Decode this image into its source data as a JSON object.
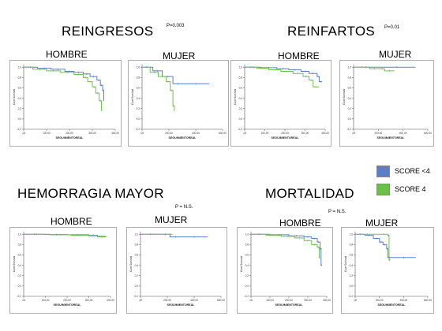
{
  "colors": {
    "score_lt4": "#5b7fc7",
    "score4": "#6cc04a",
    "panel_border": "#999999",
    "axis": "#555555"
  },
  "legend": {
    "items": [
      {
        "label": "SCORE <4",
        "color": "#5b7fc7"
      },
      {
        "label": "SCORE 4",
        "color": "#6cc04a"
      }
    ]
  },
  "sections": [
    {
      "title": "REINGRESOS",
      "p": "P=0.003",
      "male_label": "HOMBRE",
      "female_label": "MUJER"
    },
    {
      "title": "REINFARTOS",
      "p": "P=0.01",
      "male_label": "HOMBRE",
      "female_label": "MUJER"
    },
    {
      "title": "HEMORRAGIA MAYOR",
      "p": "P = N.S.",
      "male_label": "HOMBRE",
      "female_label": "MUJER"
    },
    {
      "title": "MORTALIDAD",
      "p": "P = N.S.",
      "male_label": "HOMBRE",
      "female_label": "MUJER"
    }
  ],
  "chart_data": [
    {
      "type": "line",
      "section": "REINGRESOS",
      "panel": "HOMBRE",
      "xlabel": "SEGUIMIENTOREAL",
      "ylabel": "Cum Survival",
      "xlim": [
        0,
        400
      ],
      "ylim": [
        -0.2,
        1.05
      ],
      "x_ticks": [
        ",00",
        "100,00",
        "200,00",
        "300,00",
        "400,00"
      ],
      "y_ticks": [
        "1,0",
        "0,8",
        "0,6",
        "0,4",
        "0,2",
        "0,0",
        "-0,2"
      ],
      "series": [
        {
          "name": "SCORE <4",
          "points": [
            [
              0,
              1
            ],
            [
              60,
              0.98
            ],
            [
              120,
              0.96
            ],
            [
              180,
              0.92
            ],
            [
              220,
              0.9
            ],
            [
              260,
              0.87
            ],
            [
              290,
              0.82
            ],
            [
              320,
              0.75
            ],
            [
              335,
              0.65
            ],
            [
              345,
              0.55
            ],
            [
              350,
              0.35
            ]
          ]
        },
        {
          "name": "SCORE 4",
          "points": [
            [
              0,
              1
            ],
            [
              40,
              0.96
            ],
            [
              100,
              0.93
            ],
            [
              160,
              0.9
            ],
            [
              220,
              0.86
            ],
            [
              260,
              0.8
            ],
            [
              280,
              0.72
            ],
            [
              300,
              0.62
            ],
            [
              315,
              0.5
            ],
            [
              330,
              0.35
            ],
            [
              340,
              0.15
            ]
          ]
        }
      ]
    },
    {
      "type": "line",
      "section": "REINGRESOS",
      "panel": "MUJER",
      "xlabel": "SEGUIMIENTOREAL",
      "ylabel": "Cum Survival",
      "xlim": [
        0,
        600
      ],
      "ylim": [
        -0.2,
        1.05
      ],
      "x_ticks": [
        ",00",
        "200,00",
        "400,00",
        "600,00"
      ],
      "y_ticks": [
        "1,0",
        "0,8",
        "0,6",
        "0,4",
        "0,2",
        "0,0",
        "-0,2"
      ],
      "series": [
        {
          "name": "SCORE <4",
          "points": [
            [
              0,
              1
            ],
            [
              80,
              0.93
            ],
            [
              150,
              0.82
            ],
            [
              230,
              0.68
            ],
            [
              300,
              0.68
            ],
            [
              500,
              0.68
            ]
          ]
        },
        {
          "name": "SCORE 4",
          "points": [
            [
              0,
              1
            ],
            [
              60,
              0.9
            ],
            [
              120,
              0.82
            ],
            [
              180,
              0.72
            ],
            [
              210,
              0.55
            ],
            [
              230,
              0.25
            ],
            [
              240,
              0.15
            ]
          ]
        }
      ]
    },
    {
      "type": "line",
      "section": "REINFARTOS",
      "panel": "HOMBRE",
      "xlabel": "SEGUIMIENTOREAL",
      "ylabel": "Cum Survival",
      "xlim": [
        0,
        400
      ],
      "ylim": [
        -0.2,
        1.05
      ],
      "x_ticks": [
        ",00",
        "100,00",
        "200,00",
        "300,00",
        "400,00"
      ],
      "y_ticks": [
        "1,0",
        "0,8",
        "0,6",
        "0,4",
        "0,2",
        "0,0",
        "-0,2"
      ],
      "series": [
        {
          "name": "SCORE <4",
          "points": [
            [
              0,
              1
            ],
            [
              80,
              0.99
            ],
            [
              160,
              0.97
            ],
            [
              220,
              0.95
            ],
            [
              280,
              0.92
            ],
            [
              320,
              0.88
            ],
            [
              360,
              0.82
            ],
            [
              370,
              0.72
            ],
            [
              385,
              0.72
            ]
          ]
        },
        {
          "name": "SCORE 4",
          "points": [
            [
              0,
              1
            ],
            [
              60,
              0.98
            ],
            [
              120,
              0.95
            ],
            [
              180,
              0.92
            ],
            [
              240,
              0.88
            ],
            [
              290,
              0.82
            ],
            [
              320,
              0.75
            ],
            [
              340,
              0.62
            ],
            [
              370,
              0.62
            ]
          ]
        }
      ]
    },
    {
      "type": "line",
      "section": "REINFARTOS",
      "panel": "MUJER",
      "xlabel": "SEGUIMIENTOREAL",
      "ylabel": "Cum Survival",
      "xlim": [
        0,
        600
      ],
      "ylim": [
        -0.2,
        1.05
      ],
      "x_ticks": [
        ",00",
        "200,00",
        "400,00",
        "600,00"
      ],
      "y_ticks": [
        "1,0",
        "0,8",
        "0,6",
        "0,4",
        "0,2",
        "0,0",
        "-0,2"
      ],
      "series": [
        {
          "name": "SCORE <4",
          "points": [
            [
              0,
              1
            ],
            [
              200,
              1
            ],
            [
              500,
              1
            ]
          ]
        },
        {
          "name": "SCORE 4",
          "points": [
            [
              0,
              1
            ],
            [
              130,
              0.97
            ],
            [
              210,
              0.97
            ],
            [
              250,
              0.93
            ],
            [
              330,
              0.93
            ]
          ]
        }
      ]
    },
    {
      "type": "line",
      "section": "HEMORRAGIA MAYOR",
      "panel": "HOMBRE",
      "xlabel": "SEGUIMIENTOREAL",
      "ylabel": "Cum Survival",
      "xlim": [
        0,
        400
      ],
      "ylim": [
        -0.2,
        1.05
      ],
      "x_ticks": [
        ",00",
        "100,00",
        "200,00",
        "300,00",
        "400,00"
      ],
      "y_ticks": [
        "1,0",
        "0,8",
        "0,6",
        "0,4",
        "0,2",
        "0,0",
        "-0,2"
      ],
      "series": [
        {
          "name": "SCORE <4",
          "points": [
            [
              0,
              1
            ],
            [
              100,
              0.995
            ],
            [
              200,
              0.99
            ],
            [
              300,
              0.98
            ],
            [
              340,
              0.96
            ],
            [
              380,
              0.96
            ]
          ]
        },
        {
          "name": "SCORE 4",
          "points": [
            [
              0,
              1
            ],
            [
              120,
              0.99
            ],
            [
              220,
              0.98
            ],
            [
              300,
              0.97
            ],
            [
              340,
              0.95
            ],
            [
              380,
              0.95
            ]
          ]
        }
      ]
    },
    {
      "type": "line",
      "section": "HEMORRAGIA MAYOR",
      "panel": "MUJER",
      "xlabel": "SEGUIMIENTOREAL",
      "ylabel": "Cum Survival",
      "xlim": [
        0,
        600
      ],
      "ylim": [
        -0.2,
        1.05
      ],
      "x_ticks": [
        ",00",
        "200,00",
        "400,00",
        "600,00"
      ],
      "y_ticks": [
        "1,0",
        "0,8",
        "0,6",
        "0,4",
        "0,2",
        "0,0",
        "-0,2"
      ],
      "series": [
        {
          "name": "SCORE <4",
          "points": [
            [
              0,
              1
            ],
            [
              150,
              1
            ],
            [
              220,
              0.95
            ],
            [
              300,
              0.95
            ],
            [
              500,
              0.95
            ]
          ]
        },
        {
          "name": "SCORE 4",
          "points": [
            [
              0,
              1
            ],
            [
              200,
              1
            ],
            [
              240,
              1
            ]
          ]
        }
      ]
    },
    {
      "type": "line",
      "section": "MORTALIDAD",
      "panel": "HOMBRE",
      "xlabel": "SEGUIMIENTOREAL",
      "ylabel": "Cum Survival",
      "xlim": [
        0,
        400
      ],
      "ylim": [
        -0.2,
        1.05
      ],
      "x_ticks": [
        ",00",
        "100,00",
        "200,00",
        "300,00",
        "400,00"
      ],
      "y_ticks": [
        "1,0",
        "0,8",
        "0,6",
        "0,4",
        "0,2",
        "0,0",
        "-0,2"
      ],
      "series": [
        {
          "name": "SCORE <4",
          "points": [
            [
              0,
              1
            ],
            [
              100,
              0.99
            ],
            [
              200,
              0.97
            ],
            [
              280,
              0.95
            ],
            [
              320,
              0.92
            ],
            [
              350,
              0.85
            ],
            [
              365,
              0.72
            ],
            [
              370,
              0.4
            ],
            [
              375,
              0.4
            ]
          ]
        },
        {
          "name": "SCORE 4",
          "points": [
            [
              0,
              1
            ],
            [
              80,
              0.98
            ],
            [
              160,
              0.96
            ],
            [
              230,
              0.93
            ],
            [
              280,
              0.88
            ],
            [
              320,
              0.8
            ],
            [
              350,
              0.75
            ],
            [
              360,
              0.55
            ],
            [
              365,
              0.55
            ]
          ]
        }
      ]
    },
    {
      "type": "line",
      "section": "MORTALIDAD",
      "panel": "MUJER",
      "xlabel": "SEGUIMIENTOREAL",
      "ylabel": "Cum Survival",
      "xlim": [
        0,
        600
      ],
      "ylim": [
        -0.2,
        1.05
      ],
      "x_ticks": [
        ",00",
        "200,00",
        "400,00",
        "600,00"
      ],
      "y_ticks": [
        "1,0",
        "0,8",
        "0,6",
        "0,4",
        "0,2",
        "0,0",
        "-0,2"
      ],
      "series": [
        {
          "name": "SCORE <4",
          "points": [
            [
              0,
              1
            ],
            [
              80,
              0.98
            ],
            [
              150,
              0.92
            ],
            [
              200,
              0.85
            ],
            [
              230,
              0.8
            ],
            [
              260,
              0.72
            ],
            [
              270,
              0.55
            ],
            [
              300,
              0.55
            ],
            [
              500,
              0.55
            ]
          ]
        },
        {
          "name": "SCORE 4",
          "points": [
            [
              0,
              1
            ],
            [
              200,
              1
            ],
            [
              270,
              0.98
            ],
            [
              280,
              0.5
            ],
            [
              290,
              0.5
            ]
          ]
        }
      ]
    }
  ]
}
